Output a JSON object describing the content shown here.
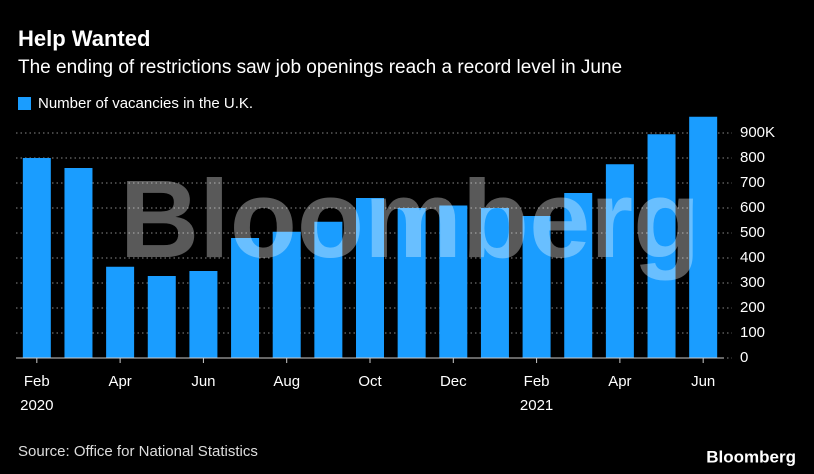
{
  "chart_data": {
    "type": "bar",
    "title": "Help Wanted",
    "subtitle": "The ending of restrictions saw job openings reach a record level in June",
    "categories": [
      "Feb",
      null,
      "Apr",
      null,
      "Jun",
      null,
      "Aug",
      null,
      "Oct",
      null,
      "Dec",
      null,
      "Feb",
      null,
      "Apr",
      null,
      "Jun"
    ],
    "category_years": [
      "2020",
      null,
      null,
      null,
      null,
      null,
      null,
      null,
      null,
      null,
      null,
      null,
      "2021",
      null,
      null,
      null,
      null
    ],
    "series": [
      {
        "name": "Number of vacancies in the U.K.",
        "color": "#1a9dff",
        "values": [
          800,
          760,
          365,
          328,
          348,
          480,
          505,
          545,
          640,
          600,
          610,
          600,
          568,
          660,
          775,
          895,
          965
        ]
      }
    ],
    "ylim": [
      0,
      970
    ],
    "yticks": [
      0,
      100,
      200,
      300,
      400,
      500,
      600,
      700,
      800,
      {
        "value": 900,
        "label": "900K"
      }
    ],
    "grid": true,
    "watermark": "Bloomberg",
    "source": "Source: Office for National Statistics",
    "brand": "Bloomberg"
  }
}
